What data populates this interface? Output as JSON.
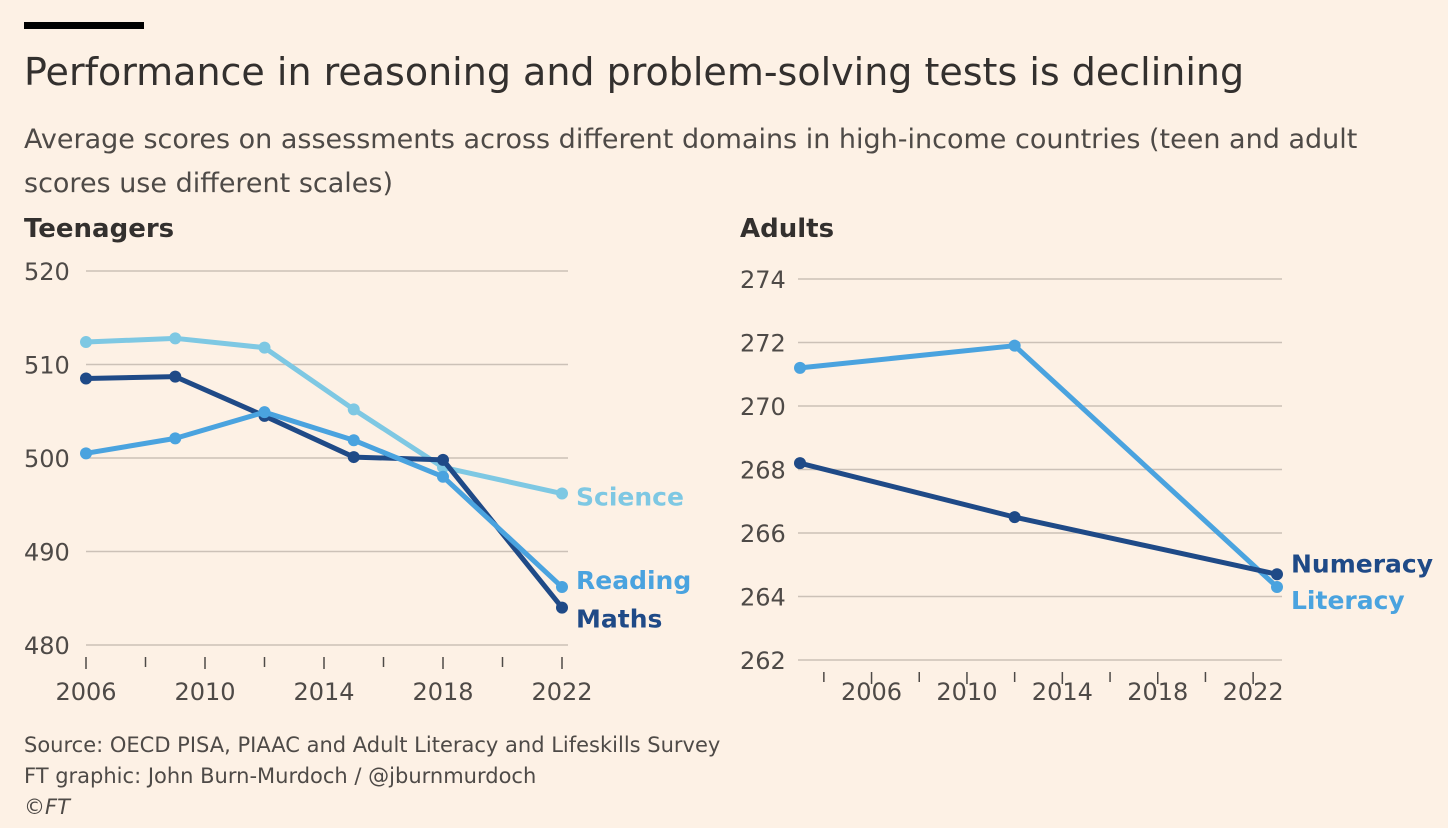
{
  "header": {
    "title": "Performance in reasoning and problem-solving tests is declining",
    "subtitle": "Average scores on assessments across different domains in high-income countries (teen and adult scores use different scales)"
  },
  "footer": {
    "source": "Source: OECD PISA, PIAAC and Adult Literacy and Lifeskills Survey",
    "credit": "FT graphic: John Burn-Murdoch / @jburnmurdoch",
    "copyright": "©FT"
  },
  "colors": {
    "background": "#fdf1e5",
    "grid": "#ccc1b7",
    "science": "#7ec8e3",
    "reading": "#4aa3df",
    "maths": "#1f4a87",
    "numeracy": "#1f4a87",
    "literacy": "#4aa3df"
  },
  "chart_data": [
    {
      "type": "line",
      "title": "Teenagers",
      "xlim": [
        2006,
        2022
      ],
      "ylim": [
        480,
        520
      ],
      "yticks": [
        480,
        490,
        500,
        510,
        520
      ],
      "xticks": [
        2006,
        2010,
        2014,
        2018,
        2022
      ],
      "xminor": [
        2008,
        2012,
        2016,
        2020
      ],
      "grid": true,
      "series": [
        {
          "name": "Science",
          "color": "#7ec8e3",
          "x": [
            2006,
            2009,
            2012,
            2015,
            2018,
            2022
          ],
          "y": [
            512.4,
            512.8,
            511.8,
            505.2,
            499.0,
            496.2
          ]
        },
        {
          "name": "Maths",
          "color": "#1f4a87",
          "x": [
            2006,
            2009,
            2012,
            2015,
            2018,
            2022
          ],
          "y": [
            508.5,
            508.7,
            504.5,
            500.1,
            499.8,
            484.0
          ]
        },
        {
          "name": "Reading",
          "color": "#4aa3df",
          "x": [
            2006,
            2009,
            2012,
            2015,
            2018,
            2022
          ],
          "y": [
            500.5,
            502.1,
            504.9,
            501.9,
            498.0,
            486.2
          ]
        }
      ]
    },
    {
      "type": "line",
      "title": "Adults",
      "xlim": [
        2003,
        2023
      ],
      "ylim": [
        262,
        274
      ],
      "yticks": [
        262,
        264,
        266,
        268,
        270,
        272,
        274
      ],
      "xticks": [
        2006,
        2010,
        2014,
        2018,
        2022
      ],
      "xminor": [
        2004,
        2008,
        2012,
        2016,
        2020
      ],
      "grid": true,
      "series": [
        {
          "name": "Literacy",
          "color": "#4aa3df",
          "x": [
            2003,
            2012,
            2023
          ],
          "y": [
            271.2,
            271.9,
            264.3
          ]
        },
        {
          "name": "Numeracy",
          "color": "#1f4a87",
          "x": [
            2003,
            2012,
            2023
          ],
          "y": [
            268.2,
            266.5,
            264.7
          ]
        }
      ]
    }
  ]
}
